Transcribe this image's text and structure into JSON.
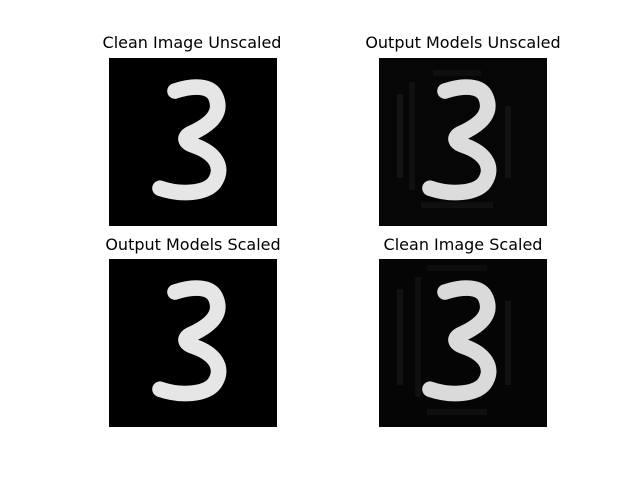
{
  "figure": {
    "panels": [
      {
        "title": "Clean Image Unscaled",
        "digit": "3",
        "image": "grayscale-digit-clean"
      },
      {
        "title": "Output Models Unscaled",
        "digit": "3",
        "image": "grayscale-digit-noisy"
      },
      {
        "title": "Output Models Scaled",
        "digit": "3",
        "image": "grayscale-digit-clean"
      },
      {
        "title": "Clean Image Scaled",
        "digit": "3",
        "image": "grayscale-digit-noisy"
      }
    ]
  },
  "colors": {
    "background": "#ffffff",
    "image_background": "#000000",
    "digit_stroke": "#f2f2f2"
  }
}
